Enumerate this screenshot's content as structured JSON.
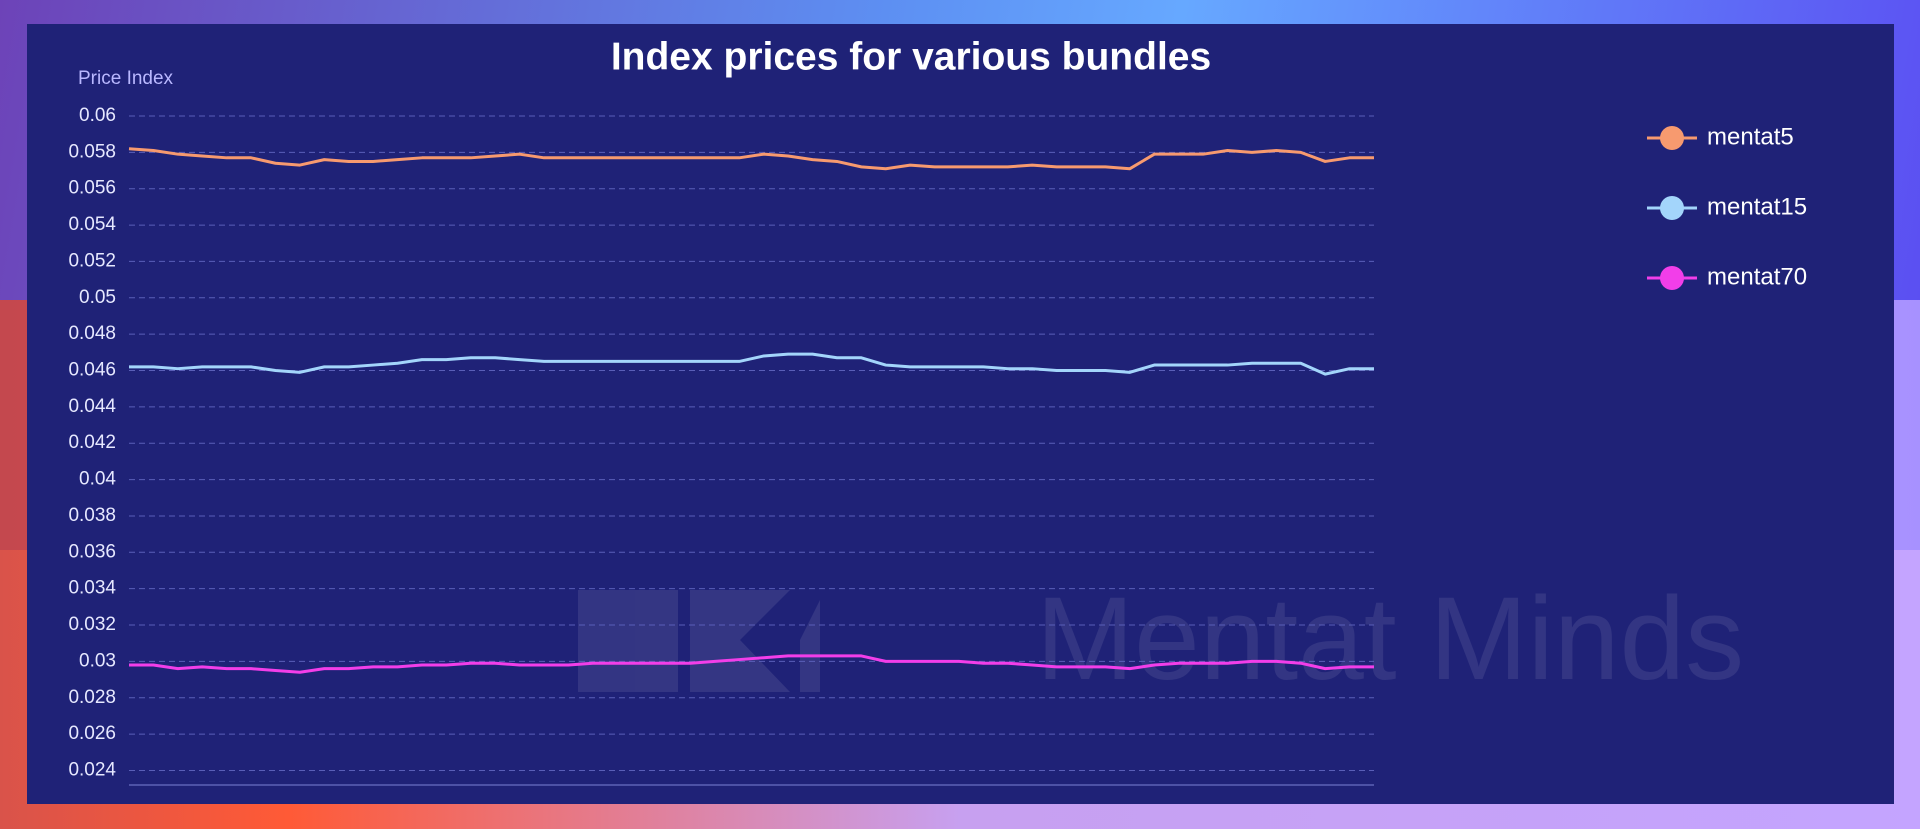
{
  "watermark": "Mentat Minds",
  "chart_data": {
    "type": "line",
    "title": "Index prices for various bundles",
    "y_label": "Price Index",
    "ylim": [
      0.0232,
      0.06
    ],
    "yticks": [
      0.024,
      0.026,
      0.028,
      0.03,
      0.032,
      0.034,
      0.036,
      0.038,
      0.04,
      0.042,
      0.044,
      0.046,
      0.048,
      0.05,
      0.052,
      0.054,
      0.056,
      0.058,
      0.06
    ],
    "grid": true,
    "legend": "right",
    "series": [
      {
        "name": "mentat5",
        "color": "#f79a6f",
        "values": [
          0.0582,
          0.0581,
          0.0579,
          0.0578,
          0.0577,
          0.0577,
          0.0574,
          0.0573,
          0.0576,
          0.0575,
          0.0575,
          0.0576,
          0.0577,
          0.0577,
          0.0577,
          0.0578,
          0.0579,
          0.0577,
          0.0577,
          0.0577,
          0.0577,
          0.0577,
          0.0577,
          0.0577,
          0.0577,
          0.0577,
          0.0579,
          0.0578,
          0.0576,
          0.0575,
          0.0572,
          0.0571,
          0.0573,
          0.0572,
          0.0572,
          0.0572,
          0.0572,
          0.0573,
          0.0572,
          0.0572,
          0.0572,
          0.0571,
          0.0579,
          0.0579,
          0.0579,
          0.0581,
          0.058,
          0.0581,
          0.058,
          0.0575,
          0.0577,
          0.0577
        ]
      },
      {
        "name": "mentat15",
        "color": "#a3d5fb",
        "values": [
          0.0462,
          0.0462,
          0.0461,
          0.0462,
          0.0462,
          0.0462,
          0.046,
          0.0459,
          0.0462,
          0.0462,
          0.0463,
          0.0464,
          0.0466,
          0.0466,
          0.0467,
          0.0467,
          0.0466,
          0.0465,
          0.0465,
          0.0465,
          0.0465,
          0.0465,
          0.0465,
          0.0465,
          0.0465,
          0.0465,
          0.0468,
          0.0469,
          0.0469,
          0.0467,
          0.0467,
          0.0463,
          0.0462,
          0.0462,
          0.0462,
          0.0462,
          0.0461,
          0.0461,
          0.046,
          0.046,
          0.046,
          0.0459,
          0.0463,
          0.0463,
          0.0463,
          0.0463,
          0.0464,
          0.0464,
          0.0464,
          0.0458,
          0.0461,
          0.0461
        ]
      },
      {
        "name": "mentat70",
        "color": "#f23ee9",
        "values": [
          0.0298,
          0.0298,
          0.0296,
          0.0297,
          0.0296,
          0.0296,
          0.0295,
          0.0294,
          0.0296,
          0.0296,
          0.0297,
          0.0297,
          0.0298,
          0.0298,
          0.0299,
          0.0299,
          0.0298,
          0.0298,
          0.0298,
          0.0299,
          0.0299,
          0.0299,
          0.0299,
          0.0299,
          0.03,
          0.0301,
          0.0302,
          0.0303,
          0.0303,
          0.0303,
          0.0303,
          0.03,
          0.03,
          0.03,
          0.03,
          0.0299,
          0.0299,
          0.0298,
          0.0297,
          0.0297,
          0.0297,
          0.0296,
          0.0298,
          0.0299,
          0.0299,
          0.0299,
          0.03,
          0.03,
          0.0299,
          0.0296,
          0.0297,
          0.0297
        ]
      }
    ]
  }
}
